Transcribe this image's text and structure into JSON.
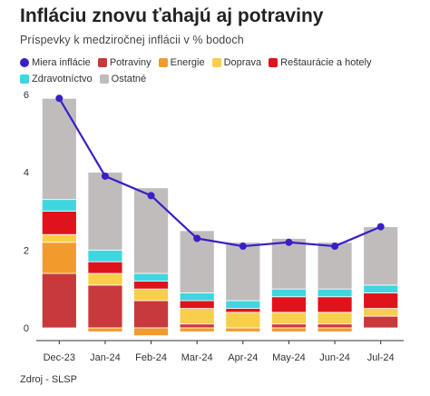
{
  "title": "Infláciu znovu ťahajú aj potraviny",
  "subtitle": "Príspevky k medziročnej inflácii v % bodoch",
  "source": "Zdroj - SLSP",
  "chart_data": {
    "type": "bar",
    "stacked": true,
    "categories": [
      "Dec-23",
      "Jan-24",
      "Feb-24",
      "Mar-24",
      "Apr-24",
      "May-24",
      "Jun-24",
      "Jul-24"
    ],
    "ylim": [
      0,
      6
    ],
    "yticks": [
      0,
      2,
      4,
      6
    ],
    "grid": false,
    "legend_position": "top",
    "series": [
      {
        "name": "Potraviny",
        "color": "#c8393b",
        "values": [
          1.4,
          1.1,
          0.7,
          0.1,
          0.0,
          0.1,
          0.1,
          0.3
        ]
      },
      {
        "name": "Energie",
        "color": "#f39a2e",
        "values": [
          0.8,
          -0.1,
          -0.2,
          -0.1,
          -0.1,
          -0.1,
          -0.1,
          0.0
        ]
      },
      {
        "name": "Doprava",
        "color": "#f7cf4a",
        "values": [
          0.2,
          0.3,
          0.3,
          0.4,
          0.4,
          0.3,
          0.3,
          0.2
        ]
      },
      {
        "name": "Reštaurácie a hotely",
        "color": "#e0121c",
        "values": [
          0.6,
          0.3,
          0.2,
          0.2,
          0.1,
          0.4,
          0.4,
          0.4
        ]
      },
      {
        "name": "Zdravotníctvo",
        "color": "#3fd6e0",
        "values": [
          0.3,
          0.3,
          0.2,
          0.2,
          0.2,
          0.2,
          0.2,
          0.2
        ]
      },
      {
        "name": "Ostatné",
        "color": "#c1bcbc",
        "values": [
          2.6,
          2.0,
          2.2,
          1.6,
          1.5,
          1.3,
          1.2,
          1.5
        ]
      }
    ],
    "line": {
      "name": "Miera inflácie",
      "color": "#3a1fc7",
      "values": [
        5.9,
        3.9,
        3.4,
        2.3,
        2.1,
        2.2,
        2.1,
        2.6
      ]
    }
  }
}
